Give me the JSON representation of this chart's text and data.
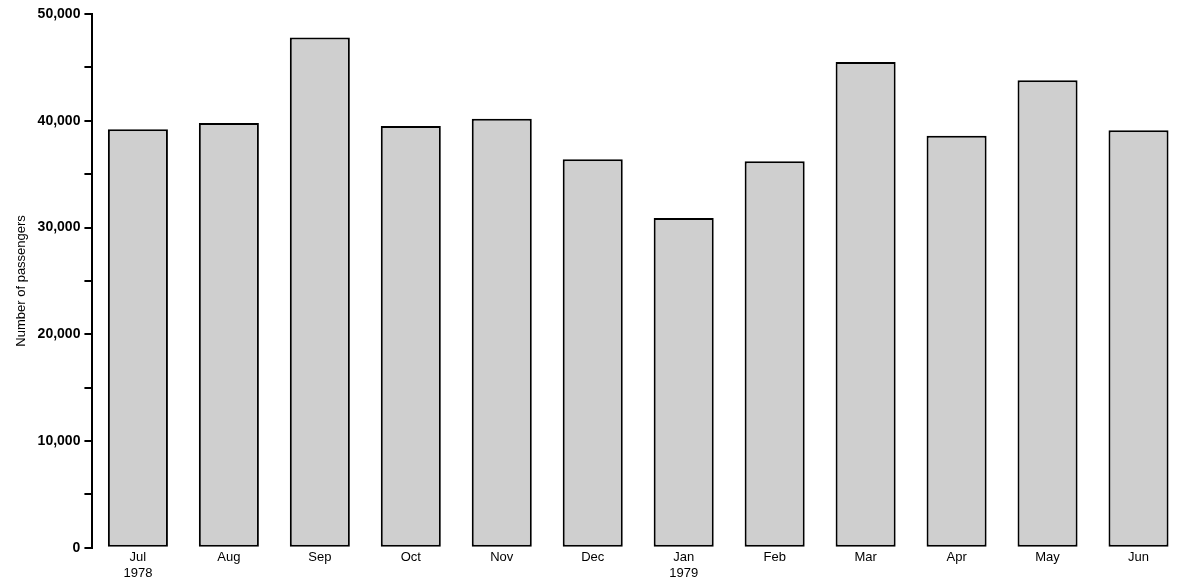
{
  "chart_data": {
    "type": "bar",
    "ylabel": "Number of passengers",
    "categories": [
      "Jul\n1978",
      "Aug",
      "Sep",
      "Oct",
      "Nov",
      "Dec",
      "Jan\n1979",
      "Feb",
      "Mar",
      "Apr",
      "May",
      "Jun"
    ],
    "values": [
      39200,
      39800,
      47800,
      39500,
      40200,
      36400,
      30900,
      36200,
      45500,
      38600,
      43800,
      39100
    ],
    "color": "#cfcfcf",
    "ylim": [
      0,
      50000
    ],
    "yticks": [
      0,
      {
        "value": 5000,
        "label": null
      },
      {
        "value": 10000,
        "label": "10,000"
      },
      {
        "value": 15000,
        "label": null
      },
      {
        "value": 20000,
        "label": "20,000"
      },
      {
        "value": 25000,
        "label": null
      },
      {
        "value": 30000,
        "label": "30,000"
      },
      {
        "value": 35000,
        "label": null
      },
      {
        "value": 40000,
        "label": "40,000"
      },
      {
        "value": 45000,
        "label": null
      },
      {
        "value": 50000,
        "label": "50,000"
      }
    ],
    "grid": false,
    "legend": false
  }
}
